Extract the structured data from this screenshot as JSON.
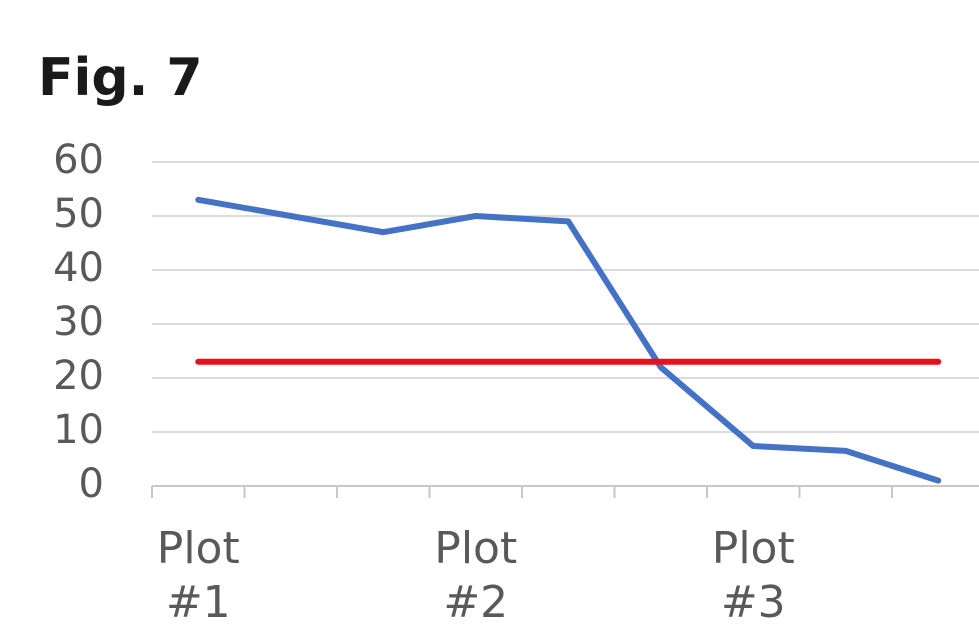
{
  "chart_data": {
    "type": "line",
    "title": "Fig. 7",
    "categories": [
      "Plot #1",
      null,
      null,
      "Plot #2",
      null,
      null,
      "Plot #3",
      null,
      null
    ],
    "series": [
      {
        "color": "#4472c4",
        "values": [
          53,
          50,
          47,
          50,
          49,
          22,
          7.4,
          6.5,
          1
        ]
      },
      {
        "color": "#e8111b",
        "values": [
          23,
          23,
          23,
          23,
          23,
          23,
          23,
          23,
          23
        ]
      }
    ],
    "ylim": [
      0,
      60
    ],
    "yticks": [
      0,
      10,
      20,
      30,
      40,
      50,
      60
    ],
    "grid": true
  }
}
